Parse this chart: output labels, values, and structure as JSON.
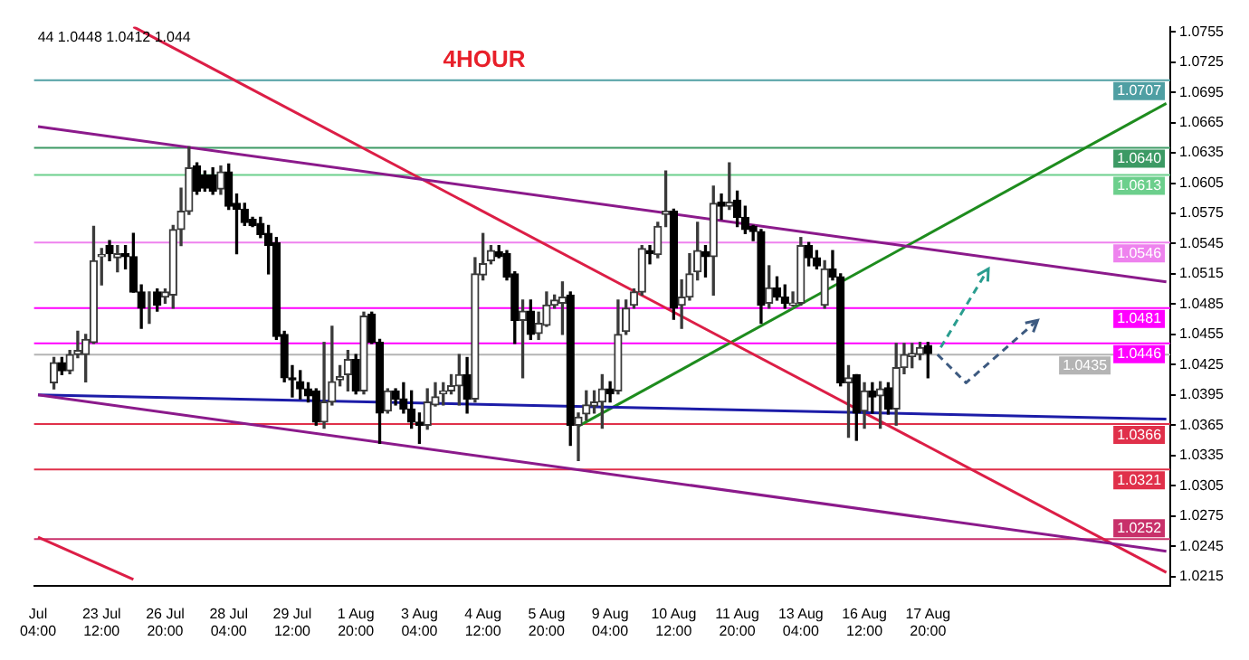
{
  "chart_data": {
    "type": "candlestick",
    "title": "4HOUR",
    "annotations": [
      "44 1.0448 1.0412 1.044"
    ],
    "categories": [
      "Jul 04:00",
      null,
      null,
      null,
      null,
      null,
      null,
      null,
      "23 Jul 12:00",
      null,
      null,
      null,
      null,
      null,
      null,
      null,
      "26 Jul 20:00",
      null,
      null,
      null,
      null,
      null,
      null,
      null,
      "28 Jul 04:00",
      null,
      null,
      null,
      null,
      null,
      null,
      null,
      "29 Jul 12:00",
      null,
      null,
      null,
      null,
      null,
      null,
      null,
      "1 Aug 20:00",
      null,
      null,
      null,
      null,
      null,
      null,
      null,
      "3 Aug 04:00",
      null,
      null,
      null,
      null,
      null,
      null,
      null,
      "4 Aug 12:00",
      null,
      null,
      null,
      null,
      null,
      null,
      null,
      "5 Aug 20:00",
      null,
      null,
      null,
      null,
      null,
      null,
      null,
      "9 Aug 04:00",
      null,
      null,
      null,
      null,
      null,
      null,
      null,
      "10 Aug 12:00",
      null,
      null,
      null,
      null,
      null,
      null,
      null,
      "11 Aug 20:00",
      null,
      null,
      null,
      null,
      null,
      null,
      null,
      "13 Aug 04:00",
      null,
      null,
      null,
      null,
      null,
      null,
      null,
      "16 Aug 12:00",
      null,
      null,
      null,
      null,
      null,
      null,
      null,
      "17 Aug 20:00",
      null,
      null,
      null,
      null,
      null,
      null,
      null,
      null,
      null,
      null,
      null,
      null,
      null,
      null,
      null,
      null,
      null,
      null,
      null,
      null,
      null,
      null,
      null,
      null,
      null,
      null,
      null,
      null,
      null,
      null
    ],
    "ohlc": [
      null,
      null,
      [
        1.0407,
        1.0432,
        1.0401,
        1.0427
      ],
      [
        1.0427,
        1.0432,
        1.0415,
        1.0419
      ],
      [
        1.0419,
        1.0439,
        1.0416,
        1.0435
      ],
      [
        1.0435,
        1.0458,
        1.0432,
        1.0439
      ],
      [
        1.0435,
        1.0455,
        1.0408,
        1.045
      ],
      [
        1.0447,
        1.0562,
        1.0446,
        1.0528
      ],
      [
        1.0532,
        1.054,
        1.0504,
        1.0534
      ],
      [
        1.0543,
        1.0548,
        1.0528,
        1.0535
      ],
      [
        1.0531,
        1.0543,
        1.0517,
        1.0535
      ],
      [
        1.0535,
        1.0543,
        1.052,
        1.0532
      ],
      [
        1.0532,
        1.0555,
        1.0497,
        1.0497
      ],
      [
        1.0497,
        1.0504,
        1.0461,
        1.0481
      ],
      [
        1.0483,
        1.0497,
        1.0466,
        1.0483
      ],
      [
        1.0497,
        1.05,
        1.0478,
        1.0484
      ],
      [
        1.0492,
        1.05,
        1.0486,
        1.0497
      ],
      [
        1.0494,
        1.0563,
        1.0481,
        1.0559
      ],
      [
        1.0559,
        1.06,
        1.0543,
        1.0577
      ],
      [
        1.0577,
        1.0641,
        1.0574,
        1.062
      ],
      [
        1.0622,
        1.0625,
        1.0594,
        1.0597
      ],
      [
        1.0613,
        1.0617,
        1.0597,
        1.06
      ],
      [
        1.0613,
        1.062,
        1.0594,
        1.0597
      ],
      [
        1.0599,
        1.0622,
        1.0594,
        1.0616
      ],
      [
        1.0616,
        1.0624,
        1.0579,
        1.0582
      ],
      [
        1.0585,
        1.0594,
        1.0535,
        1.0579
      ],
      [
        1.0579,
        1.0585,
        1.0563,
        1.0566
      ],
      [
        1.0569,
        1.0571,
        1.0562,
        1.0563
      ],
      [
        1.0565,
        1.0571,
        1.0551,
        1.0554
      ],
      [
        1.0555,
        1.0563,
        1.0515,
        1.0543
      ],
      [
        1.0546,
        1.0551,
        1.045,
        1.0453
      ],
      [
        1.0455,
        1.0458,
        1.0408,
        1.0412
      ],
      [
        1.0412,
        1.0424,
        1.0393,
        1.041
      ],
      [
        1.0408,
        1.0419,
        1.0391,
        1.0401
      ],
      [
        1.0401,
        1.0407,
        1.0388,
        1.0394
      ],
      [
        1.0399,
        1.0401,
        1.0365,
        1.0368
      ],
      [
        1.0368,
        1.0447,
        1.0362,
        1.0388
      ],
      [
        1.0388,
        1.0463,
        1.0385,
        1.0408
      ],
      [
        1.041,
        1.0424,
        1.0404,
        1.0413
      ],
      [
        1.0415,
        1.0439,
        1.0399,
        1.043
      ],
      [
        1.043,
        1.0435,
        1.0396,
        1.0399
      ],
      [
        1.0399,
        1.0477,
        1.0396,
        1.0473
      ],
      [
        1.0475,
        1.0477,
        1.0446,
        1.0447
      ],
      [
        1.0447,
        1.045,
        1.0347,
        1.0377
      ],
      [
        1.0379,
        1.0401,
        1.0377,
        1.0399
      ],
      [
        1.0399,
        1.0401,
        1.0385,
        1.0391
      ],
      [
        1.0391,
        1.0407,
        1.0377,
        1.0381
      ],
      [
        1.0381,
        1.0399,
        1.0362,
        1.0368
      ],
      [
        1.0368,
        1.0377,
        1.0347,
        1.0365
      ],
      [
        1.0365,
        1.0401,
        1.0361,
        1.0388
      ],
      [
        1.0385,
        1.0407,
        1.0384,
        1.0393
      ],
      [
        1.0396,
        1.0407,
        1.0385,
        1.0399
      ],
      [
        1.0399,
        1.0415,
        1.0396,
        1.0404
      ],
      [
        1.0404,
        1.0435,
        1.0385,
        1.0415
      ],
      [
        1.0415,
        1.0432,
        1.0377,
        1.0391
      ],
      [
        1.0391,
        1.0531,
        1.0388,
        1.0515
      ],
      [
        1.0514,
        1.0555,
        1.0509,
        1.0525
      ],
      [
        1.0528,
        1.0543,
        1.0525,
        1.0538
      ],
      [
        1.0537,
        1.0543,
        1.0531,
        1.0532
      ],
      [
        1.0535,
        1.0538,
        1.0509,
        1.0512
      ],
      [
        1.0515,
        1.0517,
        1.0446,
        1.0469
      ],
      [
        1.0469,
        1.0489,
        1.0412,
        1.0478
      ],
      [
        1.0478,
        1.0489,
        1.045,
        1.0455
      ],
      [
        1.0456,
        1.0477,
        1.045,
        1.0466
      ],
      [
        1.0464,
        1.0497,
        1.0463,
        1.0484
      ],
      [
        1.0484,
        1.0494,
        1.0481,
        1.0489
      ],
      [
        1.0486,
        1.0507,
        1.0455,
        1.0492
      ],
      [
        1.0494,
        1.0497,
        1.0345,
        1.0365
      ],
      [
        1.0365,
        1.0377,
        1.033,
        1.0373
      ],
      [
        1.0376,
        1.0399,
        1.037,
        1.0385
      ],
      [
        1.0384,
        1.0399,
        1.0377,
        1.0388
      ],
      [
        1.0388,
        1.0415,
        1.0362,
        1.0401
      ],
      [
        1.0401,
        1.0408,
        1.0388,
        1.0396
      ],
      [
        1.0399,
        1.0489,
        1.0396,
        1.0455
      ],
      [
        1.0458,
        1.0489,
        1.0455,
        1.0481
      ],
      [
        1.0484,
        1.05,
        1.0481,
        1.0497
      ],
      [
        1.0497,
        1.0543,
        1.0494,
        1.054
      ],
      [
        1.0538,
        1.0543,
        1.0525,
        1.0535
      ],
      [
        1.0534,
        1.0566,
        1.0531,
        1.0562
      ],
      [
        1.0574,
        1.0617,
        1.0562,
        1.0577
      ],
      [
        1.0577,
        1.0579,
        1.047,
        1.0481
      ],
      [
        1.0484,
        1.0509,
        1.0461,
        1.0492
      ],
      [
        1.0492,
        1.0535,
        1.0489,
        1.0515
      ],
      [
        1.0517,
        1.0566,
        1.0509,
        1.0538
      ],
      [
        1.0537,
        1.0543,
        1.0512,
        1.0532
      ],
      [
        1.0532,
        1.0602,
        1.0494,
        1.0585
      ],
      [
        1.0586,
        1.0594,
        1.0569,
        1.0582
      ],
      [
        1.0582,
        1.0625,
        1.0579,
        1.0586
      ],
      [
        1.0588,
        1.0597,
        1.0562,
        1.0571
      ],
      [
        1.0571,
        1.0582,
        1.0555,
        1.0559
      ],
      [
        1.0562,
        1.0563,
        1.0548,
        1.0557
      ],
      [
        1.0557,
        1.0559,
        1.0466,
        1.0484
      ],
      [
        1.0486,
        1.0523,
        1.0481,
        1.0501
      ],
      [
        1.0501,
        1.0512,
        1.0489,
        1.0492
      ],
      [
        1.0492,
        1.0504,
        1.0481,
        1.0486
      ],
      [
        1.0484,
        1.0497,
        1.0483,
        1.0486
      ],
      [
        1.0486,
        1.0551,
        1.0484,
        1.0543
      ],
      [
        1.0543,
        1.0546,
        1.0523,
        1.0531
      ],
      [
        1.0531,
        1.0538,
        1.052,
        1.0523
      ],
      [
        1.0484,
        1.0528,
        1.0481,
        1.052
      ],
      [
        1.052,
        1.0538,
        1.0509,
        1.0512
      ],
      [
        1.0512,
        1.0515,
        1.0404,
        1.0407
      ],
      [
        1.0407,
        1.0424,
        1.0353,
        1.0412
      ],
      [
        1.0415,
        1.0415,
        1.035,
        1.0377
      ],
      [
        1.0379,
        1.0407,
        1.0362,
        1.0399
      ],
      [
        1.0399,
        1.0407,
        1.0377,
        1.0393
      ],
      [
        1.0394,
        1.0408,
        1.0362,
        1.0401
      ],
      [
        1.0402,
        1.0407,
        1.0376,
        1.0381
      ],
      [
        1.0381,
        1.0446,
        1.0365,
        1.0422
      ],
      [
        1.0422,
        1.0446,
        1.0416,
        1.0435
      ],
      [
        1.0433,
        1.0446,
        1.0422,
        1.0436
      ],
      [
        1.0435,
        1.0447,
        1.043,
        1.0442
      ],
      [
        1.0444,
        1.0447,
        1.0412,
        1.0436
      ],
      null,
      null,
      null,
      null,
      null,
      null,
      null,
      null,
      null,
      null,
      null,
      null,
      null,
      null,
      null,
      null,
      null,
      null,
      null,
      null,
      null,
      null,
      null,
      null,
      null,
      null,
      null,
      null,
      null,
      null
    ],
    "series": [
      {
        "type": "line",
        "color": "#8b1a8b",
        "values": [
          1.0661,
          null,
          null,
          null,
          null,
          null,
          null,
          null,
          null,
          null,
          null,
          null,
          null,
          null,
          null,
          null,
          null,
          null,
          null,
          null,
          null,
          null,
          null,
          null,
          null,
          null,
          null,
          null,
          null,
          null,
          null,
          null,
          null,
          null,
          null,
          null,
          null,
          null,
          null,
          null,
          null,
          null,
          null,
          null,
          null,
          null,
          null,
          null,
          null,
          null,
          null,
          null,
          null,
          null,
          null,
          null,
          null,
          null,
          null,
          null,
          null,
          null,
          null,
          null,
          null,
          null,
          null,
          null,
          null,
          null,
          null,
          null,
          null,
          null,
          null,
          null,
          null,
          null,
          null,
          null,
          null,
          null,
          null,
          null,
          null,
          null,
          null,
          null,
          null,
          null,
          null,
          null,
          null,
          null,
          null,
          null,
          null,
          null,
          null,
          null,
          null,
          null,
          null,
          null,
          null,
          null,
          null,
          null,
          null,
          null,
          null,
          null,
          null,
          null,
          null,
          null,
          null,
          null,
          null,
          null,
          null,
          null,
          null,
          null,
          null,
          null,
          null,
          null,
          null,
          null,
          null,
          null,
          null,
          null,
          null,
          null,
          null,
          null,
          null,
          null,
          null,
          null,
          1.0507
        ]
      },
      {
        "type": "line",
        "color": "#8b1a8b",
        "values": [
          1.0395,
          null,
          null,
          null,
          null,
          null,
          null,
          null,
          null,
          null,
          null,
          null,
          null,
          null,
          null,
          null,
          null,
          null,
          null,
          null,
          null,
          null,
          null,
          null,
          null,
          null,
          null,
          null,
          null,
          null,
          null,
          null,
          null,
          null,
          null,
          null,
          null,
          null,
          null,
          null,
          null,
          null,
          null,
          null,
          null,
          null,
          null,
          null,
          null,
          null,
          null,
          null,
          null,
          null,
          null,
          null,
          null,
          null,
          null,
          null,
          null,
          null,
          null,
          null,
          null,
          null,
          null,
          null,
          null,
          null,
          null,
          null,
          null,
          null,
          null,
          null,
          null,
          null,
          null,
          null,
          null,
          null,
          null,
          null,
          null,
          null,
          null,
          null,
          null,
          null,
          null,
          null,
          null,
          null,
          null,
          null,
          null,
          null,
          null,
          null,
          null,
          null,
          null,
          null,
          null,
          null,
          null,
          null,
          null,
          null,
          null,
          null,
          null,
          null,
          null,
          null,
          null,
          null,
          null,
          null,
          null,
          null,
          null,
          null,
          null,
          null,
          null,
          null,
          null,
          null,
          null,
          null,
          null,
          null,
          null,
          null,
          null,
          null,
          null,
          null,
          null,
          null,
          1.024
        ]
      },
      {
        "type": "line",
        "color": "#1c1ca8",
        "values": [
          1.0395,
          null,
          null,
          null,
          null,
          null,
          null,
          null,
          null,
          null,
          null,
          null,
          null,
          null,
          null,
          null,
          null,
          null,
          null,
          null,
          null,
          null,
          null,
          null,
          null,
          null,
          null,
          null,
          null,
          null,
          null,
          null,
          null,
          null,
          null,
          null,
          null,
          null,
          null,
          null,
          null,
          null,
          null,
          null,
          null,
          null,
          null,
          null,
          null,
          null,
          null,
          null,
          null,
          null,
          null,
          null,
          null,
          null,
          null,
          null,
          null,
          null,
          null,
          null,
          null,
          null,
          null,
          null,
          null,
          null,
          null,
          null,
          null,
          null,
          null,
          null,
          null,
          null,
          null,
          null,
          null,
          null,
          null,
          null,
          null,
          null,
          null,
          null,
          null,
          null,
          null,
          null,
          null,
          null,
          null,
          null,
          null,
          null,
          null,
          null,
          null,
          null,
          null,
          null,
          null,
          null,
          null,
          null,
          null,
          null,
          null,
          null,
          null,
          null,
          null,
          null,
          null,
          null,
          null,
          null,
          null,
          null,
          null,
          null,
          null,
          null,
          null,
          null,
          null,
          null,
          null,
          null,
          null,
          null,
          null,
          null,
          null,
          null,
          null,
          null,
          null,
          null,
          1.0371
        ]
      },
      {
        "type": "line",
        "color": "#dc1e46",
        "values": [
          null,
          null,
          null,
          null,
          null,
          null,
          null,
          null,
          null,
          null,
          null,
          null,
          1.076,
          null,
          null,
          null,
          null,
          null,
          null,
          null,
          null,
          null,
          null,
          null,
          null,
          null,
          null,
          null,
          null,
          null,
          null,
          null,
          null,
          null,
          null,
          null,
          null,
          null,
          null,
          null,
          null,
          null,
          null,
          null,
          null,
          null,
          null,
          null,
          null,
          null,
          null,
          null,
          null,
          null,
          null,
          null,
          null,
          null,
          null,
          null,
          null,
          null,
          null,
          null,
          null,
          null,
          null,
          null,
          null,
          null,
          null,
          null,
          null,
          null,
          null,
          null,
          null,
          null,
          null,
          null,
          null,
          null,
          null,
          null,
          null,
          null,
          null,
          null,
          null,
          null,
          null,
          null,
          null,
          null,
          null,
          null,
          null,
          null,
          null,
          null,
          null,
          null,
          null,
          null,
          null,
          null,
          null,
          null,
          null,
          null,
          null,
          null,
          null,
          null,
          null,
          null,
          null,
          null,
          null,
          null,
          null,
          null,
          null,
          null,
          null,
          null,
          null,
          null,
          null,
          null,
          null,
          null,
          null,
          null,
          null,
          null,
          null,
          null,
          null,
          null,
          null,
          null,
          1.0219
        ]
      },
      {
        "type": "line",
        "color": "#dc1e46",
        "values": [
          1.0254,
          null,
          null,
          null,
          null,
          null,
          null,
          null,
          null,
          null,
          null,
          null,
          1.0212,
          null,
          null,
          null,
          null,
          null,
          null,
          null,
          null,
          null,
          null,
          null,
          null,
          null,
          null,
          null,
          null,
          null,
          null,
          null,
          null,
          null,
          null,
          null,
          null,
          null,
          null,
          null,
          null,
          null,
          null,
          null,
          null,
          null,
          null,
          null,
          null,
          null,
          null,
          null,
          null,
          null,
          null,
          null,
          null,
          null,
          null,
          null,
          null,
          null,
          null,
          null,
          null,
          null,
          null,
          null,
          null,
          null,
          null,
          null,
          null,
          null,
          null,
          null,
          null,
          null,
          null,
          null,
          null,
          null,
          null,
          null,
          null,
          null,
          null,
          null,
          null,
          null,
          null,
          null,
          null,
          null,
          null,
          null,
          null,
          null,
          null,
          null,
          null,
          null,
          null,
          null,
          null,
          null,
          null,
          null,
          null,
          null,
          null,
          null,
          null,
          null,
          null,
          null,
          null,
          null,
          null,
          null,
          null,
          null,
          null,
          null,
          null,
          null,
          null,
          null,
          null,
          null,
          null,
          null,
          null,
          null,
          null,
          null,
          null,
          null,
          null,
          null,
          null,
          null,
          null
        ]
      },
      {
        "type": "line",
        "color": "#1e8c1e",
        "values": [
          null,
          null,
          null,
          null,
          null,
          null,
          null,
          null,
          null,
          null,
          null,
          null,
          null,
          null,
          null,
          null,
          null,
          null,
          null,
          null,
          null,
          null,
          null,
          null,
          null,
          null,
          null,
          null,
          null,
          null,
          null,
          null,
          null,
          null,
          null,
          null,
          null,
          null,
          null,
          null,
          null,
          null,
          null,
          null,
          null,
          null,
          null,
          null,
          null,
          null,
          null,
          null,
          null,
          null,
          null,
          null,
          null,
          null,
          null,
          null,
          null,
          null,
          null,
          null,
          null,
          null,
          null,
          null,
          1.0364,
          null,
          null,
          null,
          null,
          null,
          null,
          null,
          null,
          null,
          null,
          null,
          null,
          null,
          null,
          null,
          null,
          null,
          null,
          null,
          null,
          null,
          null,
          null,
          null,
          null,
          null,
          null,
          null,
          null,
          null,
          null,
          null,
          null,
          null,
          null,
          null,
          null,
          null,
          null,
          null,
          null,
          null,
          null,
          null,
          null,
          null,
          null,
          null,
          null,
          null,
          null,
          null,
          null,
          null,
          null,
          null,
          null,
          null,
          null,
          null,
          null,
          null,
          null,
          null,
          null,
          null,
          null,
          null,
          null,
          null,
          null,
          null,
          null,
          1.0684
        ]
      }
    ],
    "ylim": [
      1.0206,
      1.076
    ],
    "yticks": [
      1.0215,
      1.0245,
      1.0275,
      1.0305,
      1.0335,
      1.0365,
      1.0395,
      1.0425,
      1.0455,
      1.0485,
      1.0515,
      1.0545,
      1.0575,
      1.0605,
      1.0635,
      1.0665,
      1.0695,
      1.0725,
      1.0755
    ],
    "ref_lines": [
      {
        "axis": "y",
        "value": 1.0707,
        "label": "1.0707",
        "color": "#4f9fa3"
      },
      {
        "axis": "y",
        "value": 1.064,
        "label": "1.0640",
        "color": "#3c9a64"
      },
      {
        "axis": "y",
        "value": 1.0613,
        "label": "1.0613",
        "color": "#6ccf8c"
      },
      {
        "axis": "y",
        "value": 1.0546,
        "label": "1.0546",
        "color": "#ee82ee"
      },
      {
        "axis": "y",
        "value": 1.0481,
        "label": "1.0481",
        "color": "#ff00ff"
      },
      {
        "axis": "y",
        "value": 1.0446,
        "label": "1.0446",
        "color": "#ff00ff"
      },
      {
        "axis": "y",
        "value": 1.0435,
        "label": "1.0435",
        "color": "#b4b4b4"
      },
      {
        "axis": "y",
        "value": 1.0366,
        "label": "1.0366",
        "color": "#e0304a"
      },
      {
        "axis": "y",
        "value": 1.0321,
        "label": "1.0321",
        "color": "#e0304a"
      },
      {
        "axis": "y",
        "value": 1.0252,
        "label": "1.0252",
        "color": "#c8306a"
      }
    ],
    "grid": false
  }
}
